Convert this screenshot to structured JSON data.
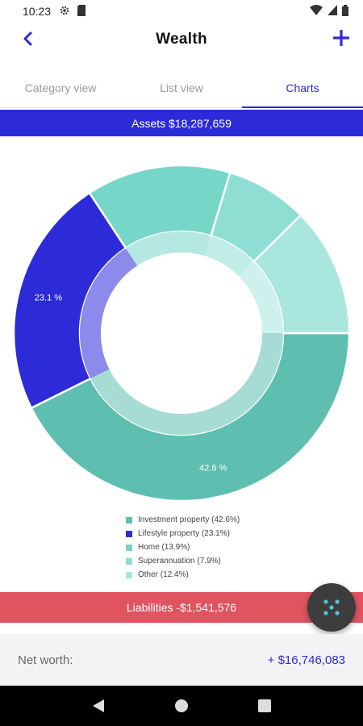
{
  "status_bar": {
    "time": "10:23",
    "left_icons": [
      "settings-icon",
      "sim-card-icon"
    ],
    "right_icons": [
      "wifi-icon",
      "signal-icon",
      "battery-icon"
    ]
  },
  "app_bar": {
    "title": "Wealth",
    "back_icon": "chevron-left-icon",
    "add_icon": "plus-icon"
  },
  "tabs": [
    {
      "label": "Category view",
      "active": false
    },
    {
      "label": "List view",
      "active": false
    },
    {
      "label": "Charts",
      "active": true
    }
  ],
  "assets": {
    "label": "Assets $18,287,659"
  },
  "chart_data": {
    "type": "pie",
    "variant": "donut",
    "categories": [
      "Investment property",
      "Lifestyle property",
      "Home",
      "Superannuation",
      "Other"
    ],
    "values": [
      42.6,
      23.1,
      13.9,
      7.9,
      12.4
    ],
    "data_labels": [
      "42.6 %",
      "23.1 %",
      "",
      "",
      ""
    ],
    "colors": [
      "#5ebfb0",
      "#2d2bd8",
      "#76d6c8",
      "#8fded3",
      "#a8e6de"
    ],
    "start_angle_deg": 0,
    "direction": "clockwise"
  },
  "legend": [
    {
      "label": "Investment property (42.6%)",
      "color": "#5ebfb0"
    },
    {
      "label": "Lifestyle property (23.1%)",
      "color": "#2d2bd8"
    },
    {
      "label": "Home (13.9%)",
      "color": "#76d6c8"
    },
    {
      "label": "Superannuation (7.9%)",
      "color": "#8fded3"
    },
    {
      "label": "Other (12.4%)",
      "color": "#a8e6de"
    }
  ],
  "liabilities": {
    "label": "Liabilities -$1,541,576"
  },
  "fab": {
    "icon": "dots-pattern-icon"
  },
  "net_worth": {
    "label": "Net worth:",
    "value": "+ $16,746,083"
  },
  "nav_bar": {
    "icons": [
      "back-triangle-icon",
      "home-circle-icon",
      "recents-square-icon"
    ]
  }
}
